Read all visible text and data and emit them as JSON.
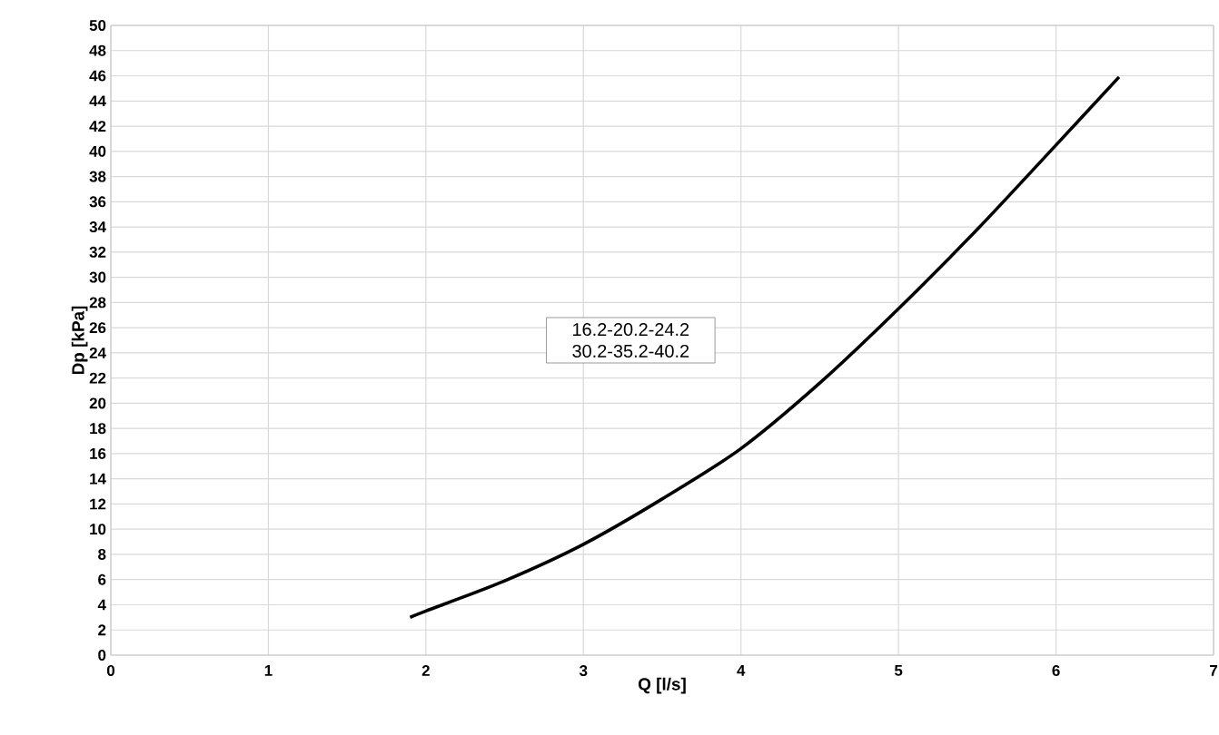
{
  "chart_data": {
    "type": "line",
    "xlabel": "Q [l/s]",
    "ylabel": "Dp [kPa]",
    "annotations": [
      "16.2-20.2-24.2",
      "30.2-35.2-40.2"
    ],
    "x": [
      1.9,
      2.0,
      2.5,
      3.0,
      3.5,
      4.0,
      4.5,
      5.0,
      5.5,
      6.0,
      6.4
    ],
    "series": [
      {
        "color": "#000000",
        "values": [
          3.0,
          3.5,
          5.9,
          8.8,
          12.4,
          16.4,
          21.6,
          27.5,
          33.8,
          40.5,
          45.9
        ]
      }
    ],
    "xlim": [
      0,
      7
    ],
    "xticks": [
      0,
      1,
      2,
      3,
      4,
      5,
      6,
      7
    ],
    "ylim": [
      0,
      50
    ],
    "yticks": [
      0,
      2,
      4,
      6,
      8,
      10,
      12,
      14,
      16,
      18,
      20,
      22,
      24,
      26,
      28,
      30,
      32,
      34,
      36,
      38,
      40,
      42,
      44,
      46,
      48,
      50
    ],
    "grid": true,
    "marker": "none",
    "line_style": "solid"
  }
}
